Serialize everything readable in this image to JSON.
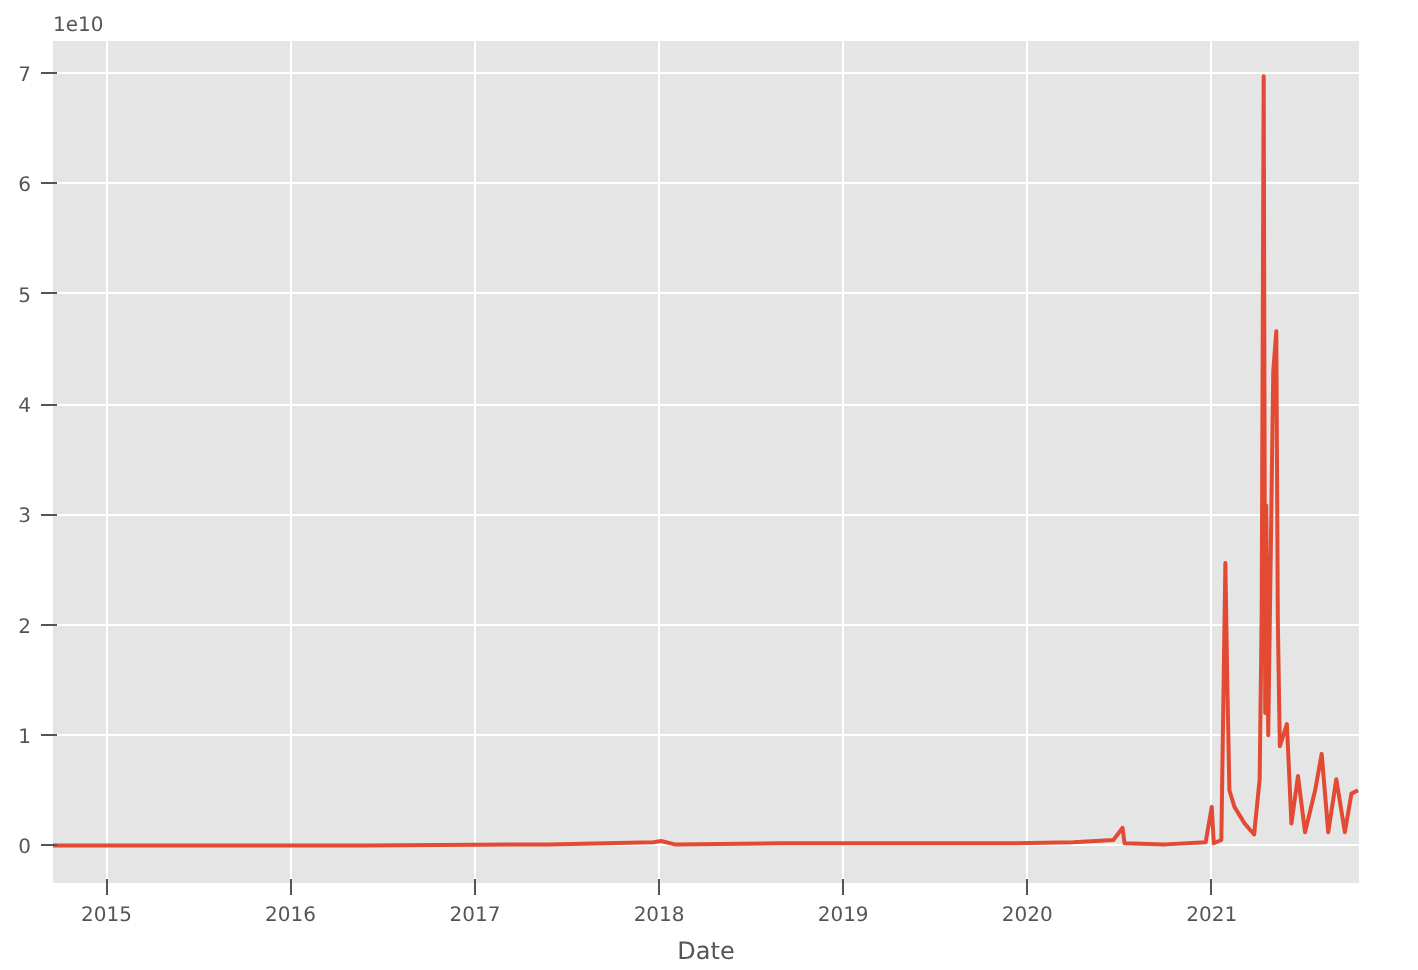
{
  "chart_data": {
    "type": "line",
    "xlabel": "Date",
    "annotations": [
      "1e10"
    ],
    "color": "#e24a33",
    "grid": true,
    "line_style": "solid",
    "x": [
      "2014-09-17",
      "2015-06-01",
      "2016-06-01",
      "2017-05-25",
      "2017-12-20",
      "2018-01-05",
      "2018-02-01",
      "2018-08-30",
      "2019-06-01",
      "2019-12-01",
      "2020-04-01",
      "2020-06-20",
      "2020-07-08",
      "2020-07-12",
      "2020-10-01",
      "2020-12-20",
      "2021-01-01",
      "2021-01-05",
      "2021-01-20",
      "2021-01-28",
      "2021-02-01",
      "2021-02-05",
      "2021-02-15",
      "2021-03-07",
      "2021-03-26",
      "2021-04-06",
      "2021-04-10",
      "2021-04-14",
      "2021-04-17",
      "2021-04-19",
      "2021-04-23",
      "2021-05-03",
      "2021-05-09",
      "2021-05-12",
      "2021-05-16",
      "2021-05-30",
      "2021-06-08",
      "2021-06-21",
      "2021-07-05",
      "2021-07-25",
      "2021-08-07",
      "2021-08-20",
      "2021-09-05",
      "2021-09-22",
      "2021-10-05",
      "2021-10-18"
    ],
    "values": [
      0.0,
      0.0,
      0.0,
      0.01,
      0.03,
      0.04,
      0.01,
      0.02,
      0.02,
      0.02,
      0.03,
      0.05,
      0.16,
      0.02,
      0.01,
      0.03,
      0.35,
      0.02,
      0.05,
      2.56,
      1.43,
      0.5,
      0.35,
      0.2,
      0.1,
      0.6,
      2.1,
      6.97,
      1.2,
      3.08,
      1.0,
      4.3,
      4.66,
      2.05,
      0.9,
      1.1,
      0.2,
      0.63,
      0.12,
      0.5,
      0.83,
      0.12,
      0.6,
      0.12,
      0.47,
      0.5
    ],
    "xlim": [
      "2014-09-17",
      "2021-10-20"
    ],
    "xticks": [
      {
        "value": "2015-01-01",
        "label": "2015"
      },
      {
        "value": "2016-01-01",
        "label": "2016"
      },
      {
        "value": "2017-01-01",
        "label": "2017"
      },
      {
        "value": "2018-01-01",
        "label": "2018"
      },
      {
        "value": "2019-01-01",
        "label": "2019"
      },
      {
        "value": "2020-01-01",
        "label": "2020"
      },
      {
        "value": "2021-01-01",
        "label": "2021"
      }
    ],
    "ylim": [
      -0.34,
      7.29
    ],
    "yticks": [
      0,
      1,
      2,
      3,
      4,
      5,
      6,
      7
    ]
  }
}
